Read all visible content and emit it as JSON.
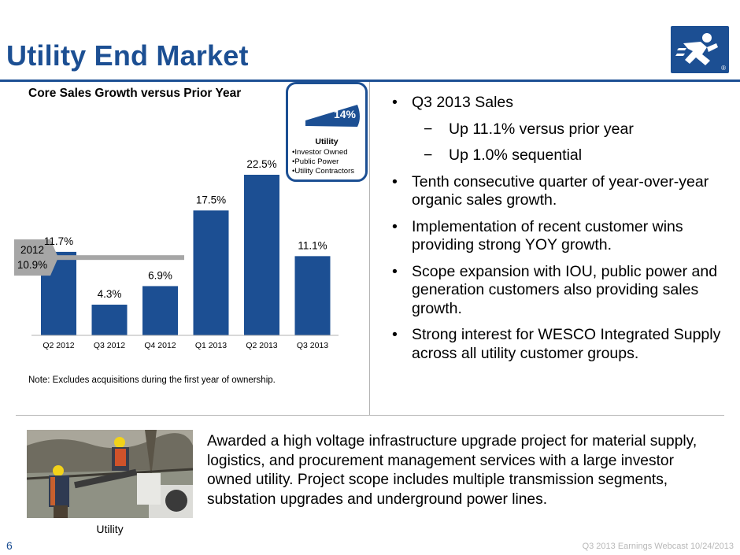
{
  "header": {
    "title": "Utility End Market",
    "logo_icon": "runner-icon",
    "logo_mark": "®",
    "brand_color": "#1c4f93"
  },
  "chart_section": {
    "title": "Core Sales Growth versus Prior Year",
    "note": "Note:  Excludes acquisitions during the first year of ownership."
  },
  "chart_data": {
    "type": "bar",
    "categories": [
      "Q2 2012",
      "Q3 2012",
      "Q4 2012",
      "Q1 2013",
      "Q2 2013",
      "Q3 2013"
    ],
    "values": [
      11.7,
      4.3,
      6.9,
      17.5,
      22.5,
      11.1
    ],
    "value_labels": [
      "11.7%",
      "4.3%",
      "6.9%",
      "17.5%",
      "22.5%",
      "11.1%"
    ],
    "bar_color": "#1c4f93",
    "ylim": [
      0,
      25
    ],
    "grid": false,
    "reference_line": {
      "value": 10.9,
      "label_year": "2012",
      "label_value": "10.9%",
      "color": "#a6a6a6",
      "span": [
        "Q2 2012",
        "Q4 2012"
      ]
    }
  },
  "callout": {
    "percent": "14%",
    "title": "Utility",
    "items": [
      "Investor Owned",
      "Public Power",
      "Utility Contractors"
    ],
    "bullet": "•"
  },
  "bullets": [
    {
      "level": 1,
      "mark": "•",
      "text": "Q3 2013 Sales"
    },
    {
      "level": 2,
      "mark": "−",
      "text": "Up 11.1% versus prior year"
    },
    {
      "level": 2,
      "mark": "−",
      "text": "Up 1.0% sequential"
    },
    {
      "level": 1,
      "mark": "•",
      "text": "Tenth consecutive quarter of year-over-year organic sales growth."
    },
    {
      "level": 1,
      "mark": "•",
      "text": "Implementation of recent customer wins providing strong YOY growth."
    },
    {
      "level": 1,
      "mark": "•",
      "text": "Scope expansion with IOU, public power and generation customers also providing sales growth."
    },
    {
      "level": 1,
      "mark": "•",
      "text": "Strong interest for WESCO Integrated Supply across all utility customer groups."
    }
  ],
  "photo": {
    "caption": "Utility"
  },
  "award_text": "Awarded a high voltage infrastructure upgrade project for material supply, logistics, and procurement management services with a large investor owned utility.  Project scope includes multiple transmission segments, substation upgrades and underground power lines.",
  "footer": {
    "page_number": "6",
    "text": "Q3 2013 Earnings Webcast 10/24/2013"
  }
}
